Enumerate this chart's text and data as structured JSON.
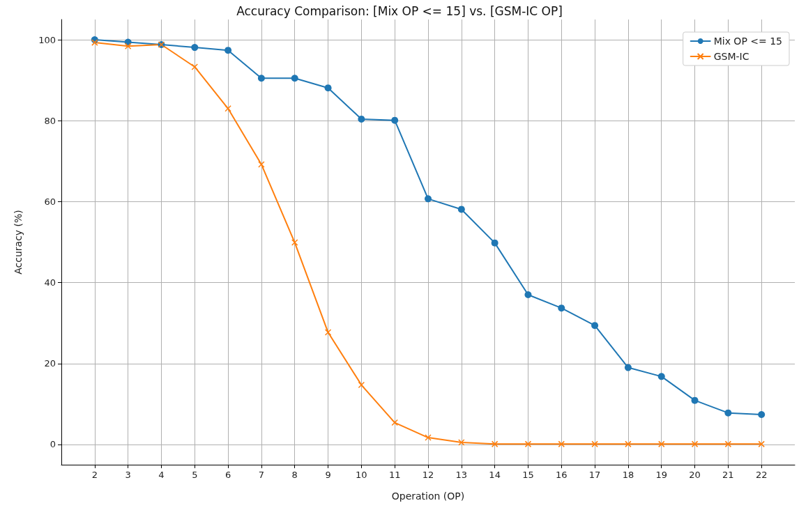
{
  "chart_data": {
    "type": "line",
    "title": "Accuracy Comparison: [Mix OP <= 15] vs. [GSM-IC OP]",
    "xlabel": "Operation (OP)",
    "ylabel": "Accuracy (%)",
    "x": [
      2,
      3,
      4,
      5,
      6,
      7,
      8,
      9,
      10,
      11,
      12,
      13,
      14,
      15,
      16,
      17,
      18,
      19,
      20,
      21,
      22
    ],
    "series": [
      {
        "name": "Mix OP <= 15",
        "color": "#1f77b4",
        "marker": "circle",
        "values": [
          100,
          99.4,
          98.8,
          98.1,
          97.4,
          90.5,
          90.5,
          88.1,
          80.4,
          80.1,
          60.7,
          58.1,
          49.8,
          37.0,
          33.7,
          29.4,
          19.0,
          16.8,
          10.9,
          7.8,
          7.4
        ]
      },
      {
        "name": "GSM-IC",
        "color": "#ff7f0e",
        "marker": "cross",
        "values": [
          99.3,
          98.4,
          98.8,
          93.3,
          83.0,
          69.2,
          49.9,
          27.7,
          14.7,
          5.4,
          1.7,
          0.5,
          0.1,
          0.1,
          0.1,
          0.1,
          0.1,
          0.1,
          0.1,
          0.1,
          0.1
        ]
      }
    ],
    "xlim": [
      1,
      23
    ],
    "xticks": [
      2,
      3,
      4,
      5,
      6,
      7,
      8,
      9,
      10,
      11,
      12,
      13,
      14,
      15,
      16,
      17,
      18,
      19,
      20,
      21,
      22
    ],
    "ylim": [
      -5,
      105
    ],
    "yticks": [
      0,
      20,
      40,
      60,
      80,
      100
    ],
    "grid": true,
    "legend": "top right",
    "line_style": "solid"
  }
}
